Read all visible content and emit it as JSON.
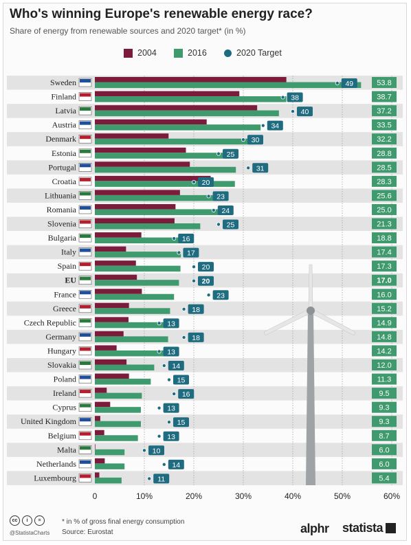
{
  "header": {
    "title": "Who's winning Europe's renewable energy race?",
    "subtitle": "Share of energy from renewable sources and 2020 target* (in %)"
  },
  "legend": {
    "s2004": "2004",
    "s2016": "2016",
    "target": "2020 Target"
  },
  "colors": {
    "bar2004": "#7b1c3b",
    "bar2016": "#3f9a6e",
    "target": "#1f6b80",
    "valueBox": "#3f9a6e",
    "stripe": "#e3e3e3"
  },
  "footer": {
    "note": "* in % of gross final energy consumption",
    "source": "Source: Eurostat",
    "handle": "@StatistaCharts",
    "cc": [
      "cc",
      "i",
      "="
    ],
    "brand1": "alphr",
    "brand2": "statista"
  },
  "chart_data": {
    "type": "bar",
    "orientation": "horizontal",
    "title": "Who's winning Europe's renewable energy race?",
    "subtitle": "Share of energy from renewable sources and 2020 target* (in %)",
    "categories": [
      "Sweden",
      "Finland",
      "Latvia",
      "Austria",
      "Denmark",
      "Estonia",
      "Portugal",
      "Croatia",
      "Lithuania",
      "Romania",
      "Slovenia",
      "Bulgaria",
      "Italy",
      "Spain",
      "EU",
      "France",
      "Greece",
      "Czech Republic",
      "Germany",
      "Hungary",
      "Slovakia",
      "Poland",
      "Ireland",
      "Cyprus",
      "United Kingdom",
      "Belgium",
      "Malta",
      "Netherlands",
      "Luxembourg"
    ],
    "series": [
      {
        "name": "2004",
        "values": [
          38.7,
          29.2,
          32.8,
          22.6,
          14.9,
          18.4,
          19.2,
          23.4,
          17.2,
          16.3,
          16.1,
          9.4,
          6.3,
          8.3,
          8.5,
          9.5,
          6.9,
          6.8,
          5.8,
          4.4,
          6.4,
          6.9,
          2.4,
          3.1,
          1.1,
          1.9,
          0.1,
          2.0,
          0.9
        ]
      },
      {
        "name": "2016",
        "values": [
          53.8,
          38.7,
          37.2,
          33.5,
          32.2,
          28.8,
          28.5,
          28.3,
          25.6,
          25.0,
          21.3,
          18.8,
          17.4,
          17.3,
          17.0,
          16.0,
          15.2,
          14.9,
          14.8,
          14.2,
          12.0,
          11.3,
          9.5,
          9.3,
          9.3,
          8.7,
          6.0,
          6.0,
          5.4
        ]
      },
      {
        "name": "2020 Target",
        "values": [
          49,
          38,
          40,
          34,
          30,
          25,
          31,
          20,
          23,
          24,
          25,
          16,
          17,
          20,
          20,
          23,
          18,
          13,
          18,
          13,
          14,
          15,
          16,
          13,
          15,
          13,
          10,
          14,
          11
        ]
      }
    ],
    "value_labels_2016": [
      "53.8",
      "38.7",
      "37.2",
      "33.5",
      "32.2",
      "28.8",
      "28.5",
      "28.3",
      "25.6",
      "25.0",
      "21.3",
      "18.8",
      "17.4",
      "17.3",
      "17.0",
      "16.0",
      "15.2",
      "14.9",
      "14.8",
      "14.2",
      "12.0",
      "11.3",
      "9.5",
      "9.3",
      "9.3",
      "8.7",
      "6.0",
      "6.0",
      "5.4"
    ],
    "highlight_category": "EU",
    "x_ticks": [
      "0",
      "10%",
      "20%",
      "30%",
      "40%",
      "50%",
      "60%"
    ],
    "xlim": [
      0,
      60
    ],
    "grid": true,
    "legend_position": "top"
  }
}
